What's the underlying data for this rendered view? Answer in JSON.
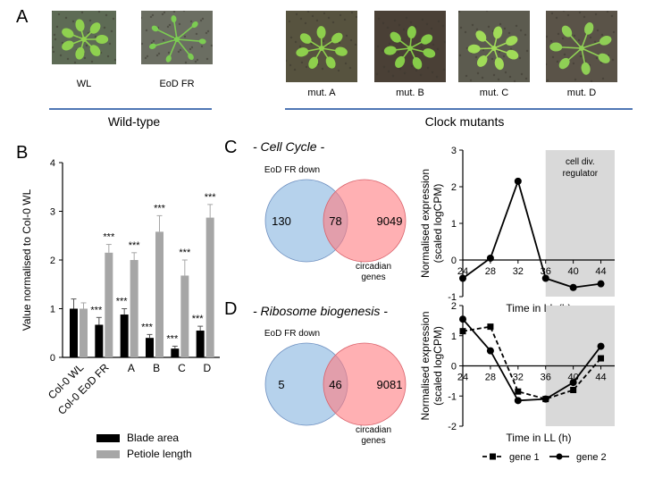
{
  "panels": {
    "a": {
      "letter": "A",
      "photos": [
        {
          "label": "WL",
          "leaf": "#8fd14f",
          "soil": "#5e6b55"
        },
        {
          "label": "EoD FR",
          "leaf": "#7ccd52",
          "soil": "#6b6e62"
        },
        {
          "label": "mut. A",
          "leaf": "#8ed04c",
          "soil": "#57533f"
        },
        {
          "label": "mut. B",
          "leaf": "#86cc49",
          "soil": "#4a4036"
        },
        {
          "label": "mut. C",
          "leaf": "#a0db58",
          "soil": "#5c5b4f"
        },
        {
          "label": "mut. D",
          "leaf": "#8fcf55",
          "soil": "#5a5348"
        }
      ],
      "groups": [
        {
          "label": "Wild-type"
        },
        {
          "label": "Clock mutants"
        }
      ],
      "line_color": "#4f77b5"
    },
    "b": {
      "letter": "B"
    },
    "c": {
      "letter": "C",
      "title": "- Cell Cycle -"
    },
    "d": {
      "letter": "D",
      "title": "- Ribosome biogenesis -"
    }
  },
  "chart_data": [
    {
      "type": "bar",
      "ylabel": "Value normalised to Col-0 WL",
      "ylim": [
        0,
        4
      ],
      "yticks": [
        "0",
        "1",
        "2",
        "3",
        "4"
      ],
      "categories": [
        "Col-0 WL",
        "Col-0 EoD FR",
        "A",
        "B",
        "C",
        "D"
      ],
      "series": [
        {
          "name": "Blade area",
          "color": "#000000",
          "values": [
            1.0,
            0.67,
            0.88,
            0.4,
            0.18,
            0.55
          ],
          "errors": [
            0.2,
            0.15,
            0.12,
            0.07,
            0.05,
            0.09
          ]
        },
        {
          "name": "Petiole length",
          "color": "#a6a6a6",
          "values": [
            1.0,
            2.15,
            2.0,
            2.58,
            1.68,
            2.87
          ],
          "errors": [
            0.12,
            0.17,
            0.15,
            0.33,
            0.32,
            0.27
          ]
        }
      ],
      "annotations": [
        {
          "category": "Col-0 EoD FR",
          "series": "Blade area",
          "text": "***"
        },
        {
          "category": "Col-0 EoD FR",
          "series": "Petiole length",
          "text": "***"
        },
        {
          "category": "A",
          "series": "Blade area",
          "text": "***"
        },
        {
          "category": "A",
          "series": "Petiole length",
          "text": "***"
        },
        {
          "category": "B",
          "series": "Blade area",
          "text": "***"
        },
        {
          "category": "B",
          "series": "Petiole length",
          "text": "***"
        },
        {
          "category": "C",
          "series": "Blade area",
          "text": "***"
        },
        {
          "category": "C",
          "series": "Petiole length",
          "text": "***"
        },
        {
          "category": "D",
          "series": "Blade area",
          "text": "***"
        },
        {
          "category": "D",
          "series": "Petiole length",
          "text": "***"
        }
      ],
      "legend_position": "bottom"
    },
    {
      "type": "venn",
      "title": "- Cell Cycle -",
      "sets": [
        {
          "label": "EoD FR down",
          "color": "#9dc3e6"
        },
        {
          "label": "circadian genes",
          "color": "#ff7c80"
        }
      ],
      "values": {
        "left_only": "130",
        "overlap": "78",
        "right_only": "9049"
      }
    },
    {
      "type": "line",
      "xlabel": "Time in LL (h)",
      "ylabel": "Normalised expression (scaled logCPM)",
      "xlim": [
        24,
        46
      ],
      "ylim": [
        -1,
        3
      ],
      "xticks": [
        "24",
        "28",
        "32",
        "36",
        "40",
        "44"
      ],
      "yticks": [
        "-1",
        "0",
        "1",
        "2",
        "3"
      ],
      "shaded_region": {
        "from": 36,
        "to": 46,
        "label": "cell div. regulator"
      },
      "series": [
        {
          "name": "",
          "marker": "circle",
          "dash": "solid",
          "x": [
            24,
            28,
            32,
            36,
            40,
            44
          ],
          "y": [
            -0.5,
            0.05,
            2.15,
            -0.5,
            -0.75,
            -0.65
          ]
        }
      ]
    },
    {
      "type": "venn",
      "title": "- Ribosome biogenesis -",
      "sets": [
        {
          "label": "EoD FR down",
          "color": "#9dc3e6"
        },
        {
          "label": "circadian genes",
          "color": "#ff7c80"
        }
      ],
      "values": {
        "left_only": "5",
        "overlap": "46",
        "right_only": "9081"
      }
    },
    {
      "type": "line",
      "xlabel": "Time in LL (h)",
      "ylabel": "Normalised expression (scaled logCPM)",
      "xlim": [
        24,
        46
      ],
      "ylim": [
        -2,
        2
      ],
      "xticks": [
        "24",
        "28",
        "32",
        "36",
        "40",
        "44"
      ],
      "yticks": [
        "-2",
        "-1",
        "0",
        "1",
        "2"
      ],
      "shaded_region": {
        "from": 36,
        "to": 46,
        "label": ""
      },
      "series": [
        {
          "name": "gene 1",
          "marker": "square",
          "dash": "dashed",
          "x": [
            24,
            28,
            32,
            36,
            40,
            44
          ],
          "y": [
            1.15,
            1.3,
            -0.85,
            -1.1,
            -0.8,
            0.25
          ]
        },
        {
          "name": "gene 2",
          "marker": "circle",
          "dash": "solid",
          "x": [
            24,
            28,
            32,
            36,
            40,
            44
          ],
          "y": [
            1.55,
            0.5,
            -1.15,
            -1.1,
            -0.55,
            0.65
          ]
        }
      ],
      "legend_position": "bottom"
    }
  ]
}
